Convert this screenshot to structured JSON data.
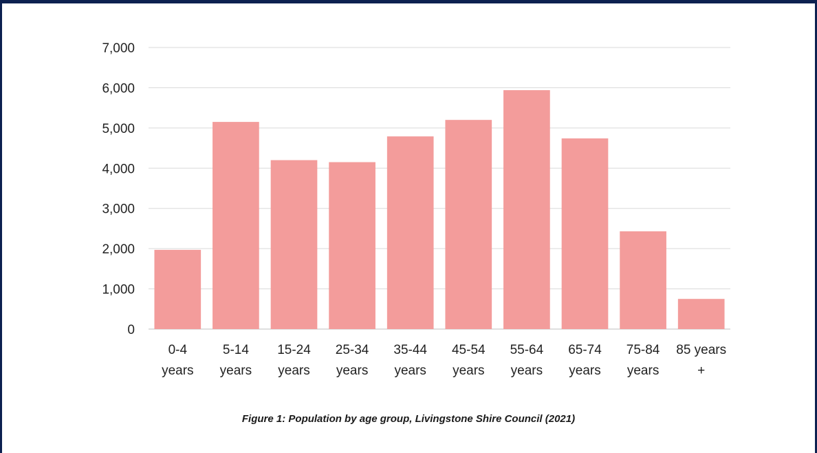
{
  "chart_data": {
    "type": "bar",
    "title": "",
    "xlabel": "",
    "ylabel": "",
    "categories": [
      "0-4 years",
      "5-14 years",
      "15-24 years",
      "25-34 years",
      "35-44 years",
      "45-54 years",
      "55-64 years",
      "65-74 years",
      "75-84 years",
      "85 years +"
    ],
    "category_lines": [
      [
        "0-4",
        "years"
      ],
      [
        "5-14",
        "years"
      ],
      [
        "15-24",
        "years"
      ],
      [
        "25-34",
        "years"
      ],
      [
        "35-44",
        "years"
      ],
      [
        "45-54",
        "years"
      ],
      [
        "55-64",
        "years"
      ],
      [
        "65-74",
        "years"
      ],
      [
        "75-84",
        "years"
      ],
      [
        "85 years",
        "+"
      ]
    ],
    "values": [
      1970,
      5150,
      4200,
      4150,
      4790,
      5200,
      5940,
      4740,
      2430,
      750
    ],
    "ylim": [
      0,
      7000
    ],
    "yticks": [
      0,
      1000,
      2000,
      3000,
      4000,
      5000,
      6000,
      7000
    ],
    "ytick_labels": [
      "0",
      "1,000",
      "2,000",
      "3,000",
      "4,000",
      "5,000",
      "6,000",
      "7,000"
    ],
    "grid": true,
    "bar_color": "#f39c9b"
  },
  "caption": "Figure 1: Population by age group, Livingstone Shire Council (2021)",
  "colors": {
    "border": "#0d2150",
    "grid": "#d9d9d9"
  }
}
